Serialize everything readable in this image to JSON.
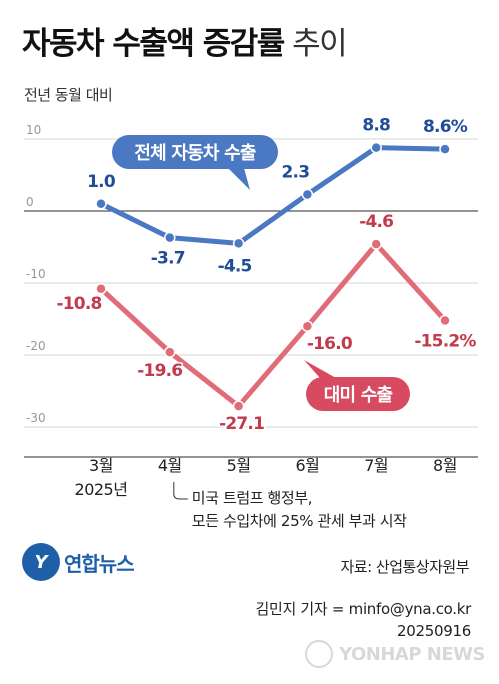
{
  "title": {
    "main": "자동차 수출액 증감률",
    "suffix": "추이"
  },
  "subtitle": "전년 동월 대비",
  "colors": {
    "blue": "#4a78c2",
    "red": "#e06c78",
    "red_text": "#c13a4e",
    "blue_text": "#1f4e96"
  },
  "chart_data": {
    "type": "line",
    "categories": [
      "3월",
      "4월",
      "5월",
      "6월",
      "7월",
      "8월"
    ],
    "year_label": "2025년",
    "ylim": [
      -35,
      12
    ],
    "yticks": [
      10,
      0,
      -10,
      -20,
      -30
    ],
    "ytick_labels": [
      "10",
      "0",
      "-10",
      "-20",
      "-30"
    ],
    "grid": true,
    "series": [
      {
        "name": "전체 자동차 수출",
        "color": "#4a78c2",
        "values": [
          1.0,
          -3.7,
          -4.5,
          2.3,
          8.8,
          8.6
        ],
        "value_labels": [
          "1.0",
          "-3.7",
          "-4.5",
          "2.3",
          "8.8",
          "8.6%"
        ]
      },
      {
        "name": "대미 수출",
        "color": "#e06c78",
        "values": [
          -10.8,
          -19.6,
          -27.1,
          -16.0,
          -4.6,
          -15.2
        ],
        "value_labels": [
          "-10.8",
          "-19.6",
          "-27.1",
          "-16.0",
          "-4.6",
          "-15.2%"
        ]
      }
    ],
    "annotation": {
      "category": "4월",
      "lines": [
        "미국 트럼프 행정부,",
        "모든 수입차에 25% 관세 부과 시작"
      ]
    }
  },
  "source": "자료: 산업통상자원부",
  "byline": {
    "reporter": "김민지 기자 = minfo@yna.co.kr",
    "date": "20250916"
  },
  "logo": {
    "mark": "Y",
    "text": "연합뉴스"
  },
  "watermark": "YONHAP NEWS"
}
